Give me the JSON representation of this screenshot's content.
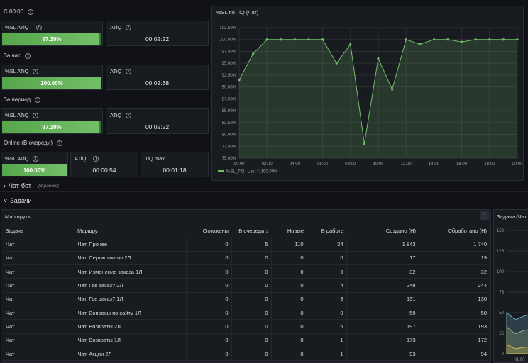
{
  "groups": [
    {
      "label": "С 00:00",
      "sl_title": "%SL ATiQ .",
      "sl_value": "97.39%",
      "sl_fill": 0.9739,
      "atiq_title": "ATiQ",
      "atiq_value": "00:02:22"
    },
    {
      "label": "За час",
      "sl_title": "%SL ATiQ",
      "sl_value": "100.00%",
      "sl_fill": 1.0,
      "atiq_title": "ATiQ",
      "atiq_value": "00:02:38"
    },
    {
      "label": "За период",
      "sl_title": "%SL ATiQ",
      "sl_value": "97.39%",
      "sl_fill": 0.9739,
      "atiq_title": "ATiQ",
      "atiq_value": "00:02:22"
    }
  ],
  "online": {
    "label": "Online (В очереди)",
    "sl_title": "%SL ATiQ",
    "sl_value": "100.00%",
    "sl_fill": 1.0,
    "atiq_title": "ATiQ .",
    "atiq_value": "00:00:54",
    "tiqmax_title": "TiQ max",
    "tiqmax_value": "00:01:18"
  },
  "chart_panel": {
    "title": "%SL по TiQ (Чат)"
  },
  "chart_data": {
    "type": "line",
    "title": "%SL по TiQ (Чат)",
    "x": [
      "00:00",
      "01:00",
      "02:00",
      "03:00",
      "04:00",
      "05:00",
      "06:00",
      "07:00",
      "08:00",
      "09:00",
      "10:00",
      "11:00",
      "12:00",
      "13:00",
      "14:00",
      "15:00",
      "16:00",
      "17:00",
      "18:00",
      "19:00",
      "20:00"
    ],
    "xticks": [
      "00:00",
      "02:00",
      "04:00",
      "06:00",
      "08:00",
      "10:00",
      "12:00",
      "14:00",
      "16:00",
      "18:00",
      "20:00"
    ],
    "yticks": [
      "75.00%",
      "77.50%",
      "80.00%",
      "82.50%",
      "85.00%",
      "87.50%",
      "90.00%",
      "92.50%",
      "95.00%",
      "97.50%",
      "100.00%",
      "102.50%"
    ],
    "ylim": [
      75,
      102.5
    ],
    "series": [
      {
        "name": "%SL_TiQ",
        "values": [
          91.5,
          97,
          100,
          100,
          100,
          100,
          100,
          95,
          99,
          78,
          96,
          89.5,
          100,
          99,
          100,
          100,
          99.5,
          100,
          100,
          100,
          100
        ]
      }
    ],
    "legend": {
      "name": "%SL_TiQ",
      "last_text": "Last *: 100.00%"
    },
    "grid": true,
    "color": "#73bf69"
  },
  "rows": {
    "chatbot": {
      "arrow": "›",
      "label": "Чат-бот",
      "count": "(3 panels)"
    },
    "tasks": {
      "arrow": "˅",
      "label": "Задачи"
    }
  },
  "routes_panel": {
    "title": "Маршруты",
    "menu_icon": "⋮",
    "columns": [
      "Задача",
      "Маршрут",
      "Отложены",
      "В очереди ↓",
      "Новые",
      "В работе",
      "Создано (Н)",
      "Обработано (Н)"
    ],
    "rows": [
      [
        "Чат",
        "Чат. Прочее",
        "0",
        "5",
        "110",
        "34",
        "1 843",
        "1 740"
      ],
      [
        "Чат",
        "Чат. Сертификаты 2Л",
        "0",
        "0",
        "0",
        "0",
        "17",
        "19"
      ],
      [
        "Чат",
        "Чат. Изменение заказа 1Л",
        "0",
        "0",
        "0",
        "0",
        "32",
        "32"
      ],
      [
        "Чат",
        "Чат. Где заказ? 2Л",
        "0",
        "0",
        "0",
        "4",
        "248",
        "244"
      ],
      [
        "Чат",
        "Чат. Где заказ? 1Л",
        "0",
        "0",
        "0",
        "3",
        "131",
        "130"
      ],
      [
        "Чат",
        "Чат. Вопросы по сайту 1Л",
        "0",
        "0",
        "0",
        "0",
        "50",
        "50"
      ],
      [
        "Чат",
        "Чат. Возвраты 2Л",
        "0",
        "0",
        "0",
        "5",
        "197",
        "193"
      ],
      [
        "Чат",
        "Чат. Возвраты 1Л",
        "0",
        "0",
        "0",
        "1",
        "173",
        "172"
      ],
      [
        "Чат",
        "Чат. Акции 2Л",
        "0",
        "0",
        "0",
        "1",
        "93",
        "94"
      ]
    ]
  },
  "tasks_panel": {
    "title": "Задачи (Чат",
    "yticks": [
      "150",
      "125",
      "100",
      "75",
      "50",
      "25",
      "0"
    ],
    "xtick": "01:00"
  }
}
